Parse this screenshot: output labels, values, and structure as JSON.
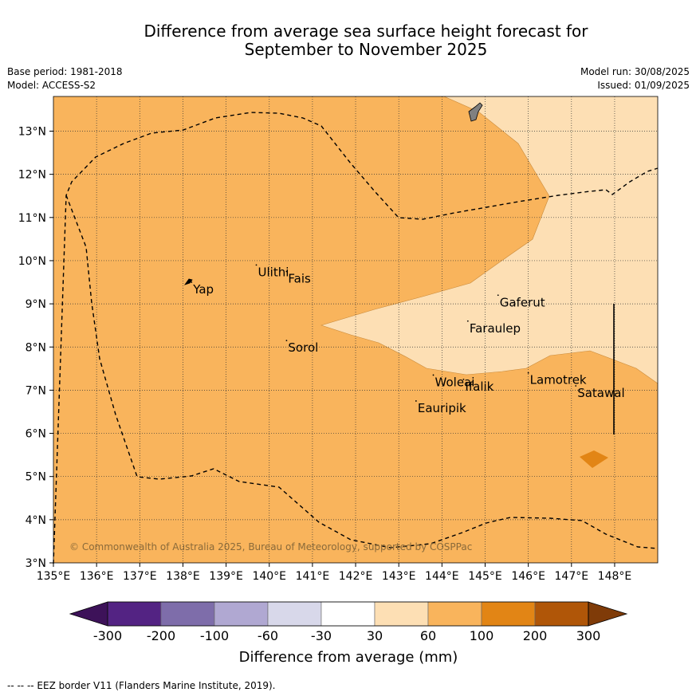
{
  "title_line1": "Difference from average sea surface height forecast for",
  "title_line2": "September to November 2025",
  "base_period": "Base period: 1981-2018",
  "model": "Model: ACCESS-S2",
  "model_run": "Model run: 30/08/2025",
  "issued": "Issued: 01/09/2025",
  "copyright": "© Commonwealth of Australia 2025, Bureau of Meteorology, supported by COSPPac",
  "x_ticks": [
    "135°E",
    "136°E",
    "137°E",
    "138°E",
    "139°E",
    "140°E",
    "141°E",
    "142°E",
    "143°E",
    "144°E",
    "145°E",
    "146°E",
    "147°E",
    "148°E"
  ],
  "y_ticks": [
    "3°N",
    "4°N",
    "5°N",
    "6°N",
    "7°N",
    "8°N",
    "9°N",
    "10°N",
    "11°N",
    "12°N",
    "13°N"
  ],
  "places": [
    {
      "name": "Yap",
      "lon": 138.2,
      "lat": 9.5
    },
    {
      "name": "Ulithi",
      "lon": 139.7,
      "lat": 9.9
    },
    {
      "name": "Fais",
      "lon": 140.4,
      "lat": 9.75
    },
    {
      "name": "Sorol",
      "lon": 140.4,
      "lat": 8.15
    },
    {
      "name": "Gaferut",
      "lon": 145.3,
      "lat": 9.2
    },
    {
      "name": "Faraulep",
      "lon": 144.6,
      "lat": 8.6
    },
    {
      "name": "Lamotrek",
      "lon": 146.0,
      "lat": 7.4
    },
    {
      "name": "Woleai",
      "lon": 143.8,
      "lat": 7.35
    },
    {
      "name": "Ifalik",
      "lon": 144.5,
      "lat": 7.25
    },
    {
      "name": "Satawal",
      "lon": 147.1,
      "lat": 7.1
    },
    {
      "name": "Eauripik",
      "lon": 143.4,
      "lat": 6.75
    }
  ],
  "colorbar": {
    "label": "Difference from average (mm)",
    "tick_labels": [
      "-300",
      "-200",
      "-100",
      "-60",
      "-30",
      "30",
      "60",
      "100",
      "200",
      "300"
    ],
    "colors": [
      "#3d1259",
      "#532383",
      "#7e6daa",
      "#b0a8d2",
      "#d8d8ea",
      "#ffffff",
      "#fddfb4",
      "#f9b45c",
      "#e28515",
      "#b05608",
      "#7f3b08"
    ]
  },
  "legend_text": "-- -- -- EEZ border V11 (Flanders Marine Institute, 2019).",
  "colors": {
    "band_60_100": "#f9b45c",
    "band_30_60": "#fddfb4",
    "band_100_200": "#e28515",
    "land": "#808080"
  }
}
